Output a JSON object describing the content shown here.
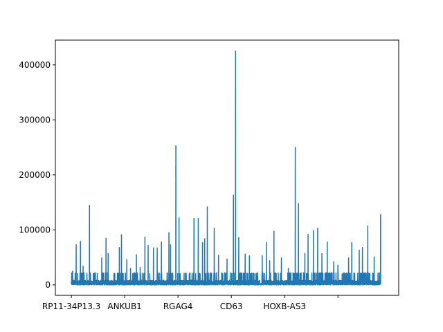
{
  "chart_data": {
    "type": "line",
    "title": "",
    "xlabel": "",
    "ylabel": "",
    "color": "#1f77b4",
    "ylim": [
      -19000,
      445000
    ],
    "xlim": [
      -1500,
      30700
    ],
    "y_ticks": [
      0,
      100000,
      200000,
      300000,
      400000
    ],
    "y_tick_labels": [
      "0",
      "100000",
      "200000",
      "300000",
      "400000"
    ],
    "x_ticks": [
      0,
      5000,
      10000,
      15000,
      20000,
      25000
    ],
    "x_tick_labels": [
      "RP11-34P13.3",
      "ANKUB1",
      "RGAG4",
      "CD63",
      "HOXB-AS3",
      ""
    ],
    "n_points": 29000,
    "peaks": [
      {
        "x": 120,
        "y": 25000
      },
      {
        "x": 450,
        "y": 73000
      },
      {
        "x": 850,
        "y": 79000
      },
      {
        "x": 1100,
        "y": 34000
      },
      {
        "x": 1700,
        "y": 145000
      },
      {
        "x": 2200,
        "y": 14000
      },
      {
        "x": 2850,
        "y": 49000
      },
      {
        "x": 3250,
        "y": 85000
      },
      {
        "x": 3450,
        "y": 57000
      },
      {
        "x": 4500,
        "y": 68000
      },
      {
        "x": 4700,
        "y": 91000
      },
      {
        "x": 5200,
        "y": 46000
      },
      {
        "x": 5550,
        "y": 30000
      },
      {
        "x": 6100,
        "y": 55000
      },
      {
        "x": 6450,
        "y": 32000
      },
      {
        "x": 6900,
        "y": 87000
      },
      {
        "x": 7200,
        "y": 72000
      },
      {
        "x": 7700,
        "y": 67000
      },
      {
        "x": 8050,
        "y": 67000
      },
      {
        "x": 8450,
        "y": 78000
      },
      {
        "x": 9150,
        "y": 95000
      },
      {
        "x": 9300,
        "y": 73000
      },
      {
        "x": 9800,
        "y": 253000
      },
      {
        "x": 10100,
        "y": 122000
      },
      {
        "x": 10700,
        "y": 21000
      },
      {
        "x": 11500,
        "y": 121000
      },
      {
        "x": 11900,
        "y": 121000
      },
      {
        "x": 12300,
        "y": 77000
      },
      {
        "x": 12500,
        "y": 84000
      },
      {
        "x": 12750,
        "y": 142000
      },
      {
        "x": 13400,
        "y": 103000
      },
      {
        "x": 13800,
        "y": 54000
      },
      {
        "x": 14600,
        "y": 47000
      },
      {
        "x": 15200,
        "y": 163000
      },
      {
        "x": 15400,
        "y": 425000
      },
      {
        "x": 15700,
        "y": 86000
      },
      {
        "x": 16300,
        "y": 56000
      },
      {
        "x": 16700,
        "y": 53000
      },
      {
        "x": 17900,
        "y": 53000
      },
      {
        "x": 18300,
        "y": 77000
      },
      {
        "x": 18600,
        "y": 44000
      },
      {
        "x": 19000,
        "y": 98000
      },
      {
        "x": 19700,
        "y": 49000
      },
      {
        "x": 20350,
        "y": 30000
      },
      {
        "x": 21000,
        "y": 250000
      },
      {
        "x": 21300,
        "y": 148000
      },
      {
        "x": 21900,
        "y": 57000
      },
      {
        "x": 22200,
        "y": 92000
      },
      {
        "x": 22700,
        "y": 99000
      },
      {
        "x": 23100,
        "y": 103000
      },
      {
        "x": 23500,
        "y": 57000
      },
      {
        "x": 24000,
        "y": 78000
      },
      {
        "x": 24600,
        "y": 42000
      },
      {
        "x": 25000,
        "y": 36000
      },
      {
        "x": 25400,
        "y": 20000
      },
      {
        "x": 26000,
        "y": 49000
      },
      {
        "x": 26300,
        "y": 77000
      },
      {
        "x": 27000,
        "y": 63000
      },
      {
        "x": 27300,
        "y": 68000
      },
      {
        "x": 27800,
        "y": 107000
      },
      {
        "x": 28400,
        "y": 51000
      },
      {
        "x": 29000,
        "y": 128000
      }
    ]
  }
}
